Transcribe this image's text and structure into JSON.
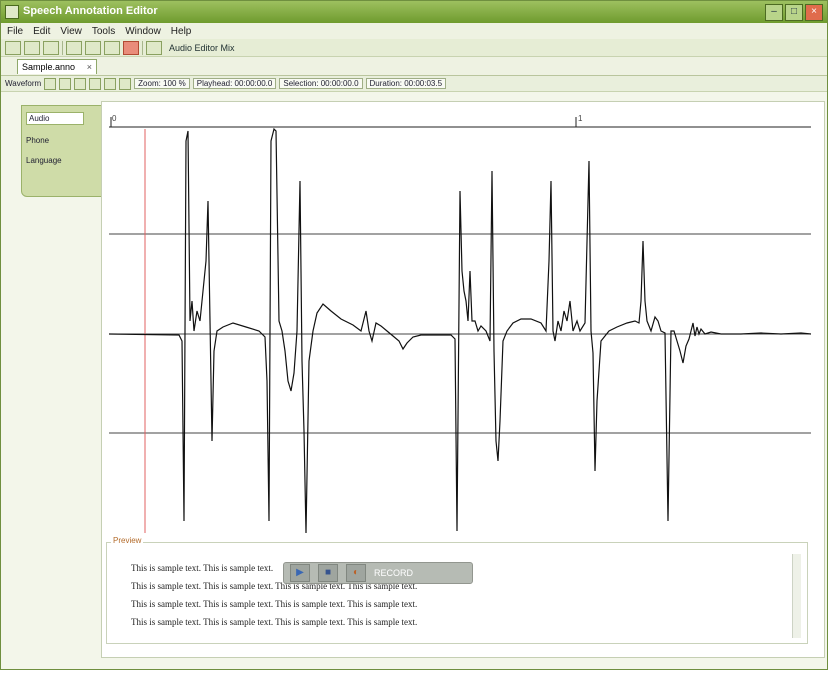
{
  "window": {
    "title": "Speech Annotation Editor"
  },
  "menu": [
    "File",
    "Edit",
    "View",
    "Tools",
    "Window",
    "Help"
  ],
  "toolbar": {
    "mode_label": "Audio Editor Mix"
  },
  "document_tab": {
    "label": "Sample.anno"
  },
  "editor_toolbar": {
    "label": "Waveform",
    "zoom": "Zoom: 100 %",
    "playhead": "Playhead: 00:00:00.0",
    "selection": "Selection: 00:00:00.0",
    "duration": "Duration: 00:00:03.5"
  },
  "side_nav": {
    "items": [
      "Audio",
      "Phone",
      "Language"
    ]
  },
  "preview": {
    "title": "Preview",
    "lines": [
      "This is sample text. This is sample text.",
      "This is sample text. This is sample text. This is sample text. This is sample text.",
      "This is sample text. This is sample text. This is sample text. This is sample text.",
      "This is sample text. This is sample text. This is sample text. This is sample text."
    ]
  },
  "player": {
    "record_label": "RECORD"
  },
  "ruler": {
    "left": "0",
    "mid": "1"
  },
  "colors": {
    "accent": "#7aa43a",
    "cursor": "#e06060"
  }
}
